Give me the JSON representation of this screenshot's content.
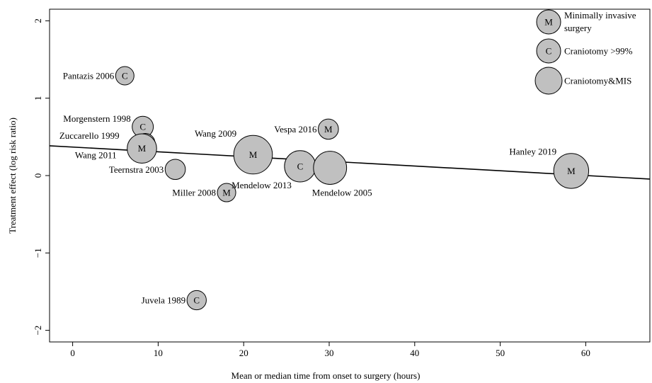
{
  "chart_data": {
    "type": "scatter",
    "xlabel": "Mean or median time from onset to surgery (hours)",
    "ylabel": "Treatment effect (log risk ratio)",
    "xlim": [
      -2.7,
      67.5
    ],
    "ylim": [
      -2.15,
      2.15
    ],
    "xticks": [
      0,
      10,
      20,
      30,
      40,
      50,
      60
    ],
    "yticks": [
      -2,
      -1,
      0,
      1,
      2
    ],
    "xtick_labels": [
      "0",
      "10",
      "20",
      "30",
      "40",
      "50",
      "60"
    ],
    "ytick_labels": [
      "−2",
      "−1",
      "0",
      "1",
      "2"
    ],
    "grid": false,
    "legend_position": "top-right",
    "marker_fill": "#c0c0c0",
    "marker_stroke": "#000000",
    "regression_line": {
      "x": [
        -2.7,
        67.5
      ],
      "y": [
        0.385,
        -0.045
      ]
    },
    "legend": [
      {
        "letter": "M",
        "lines": [
          "Minimally invasive",
          "surgery"
        ]
      },
      {
        "letter": "C",
        "lines": [
          "Craniotomy >99%"
        ]
      },
      {
        "letter": "",
        "lines": [
          "Craniotomy&MIS"
        ]
      }
    ],
    "points": [
      {
        "label": "Pantazis 2006",
        "x": 6.1,
        "y": 1.29,
        "letter": "C",
        "size": 1.0,
        "label_pos": "left"
      },
      {
        "label": "Morgenstern 1998",
        "x": 8.2,
        "y": 0.63,
        "letter": "C",
        "size": 1.15,
        "label_pos": "left"
      },
      {
        "label": "Zuccarello 1999",
        "x": 8.5,
        "y": 0.42,
        "letter": "",
        "size": 1.05,
        "label_pos": "left"
      },
      {
        "label": "Wang 2011",
        "x": 8.1,
        "y": 0.35,
        "letter": "M",
        "size": 1.6,
        "label_pos": "left"
      },
      {
        "label": "Teernstra 2003",
        "x": 12.0,
        "y": 0.08,
        "letter": "",
        "size": 1.1,
        "label_pos": "left"
      },
      {
        "label": "Wang 2009",
        "x": 21.1,
        "y": 0.27,
        "letter": "M",
        "size": 2.1,
        "label_pos": "above-left"
      },
      {
        "label": "Miller 2008",
        "x": 18.0,
        "y": -0.22,
        "letter": "M",
        "size": 1.0,
        "label_pos": "left"
      },
      {
        "label": "Vespa 2016",
        "x": 29.9,
        "y": 0.6,
        "letter": "M",
        "size": 1.1,
        "label_pos": "left"
      },
      {
        "label": "Mendelow 2013",
        "x": 26.6,
        "y": 0.12,
        "letter": "C",
        "size": 1.7,
        "label_pos": "below-left"
      },
      {
        "label": "Mendelow 2005",
        "x": 30.1,
        "y": 0.1,
        "letter": "",
        "size": 1.8,
        "label_pos": "below"
      },
      {
        "label": "Juvela 1989",
        "x": 14.5,
        "y": -1.61,
        "letter": "C",
        "size": 1.05,
        "label_pos": "left"
      },
      {
        "label": "Hanley 2019",
        "x": 58.3,
        "y": 0.06,
        "letter": "M",
        "size": 1.9,
        "label_pos": "above-left"
      }
    ]
  }
}
